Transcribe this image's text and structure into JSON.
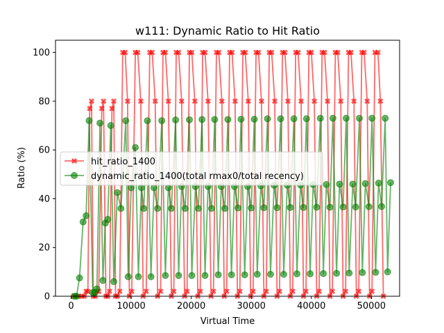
{
  "chart_data": {
    "type": "line",
    "title": "w111: Dynamic Ratio to Hit Ratio",
    "xlabel": "Virtual Time",
    "ylabel": "Ratio (%)",
    "xlim": [
      -2600,
      54700
    ],
    "ylim": [
      0,
      105
    ],
    "x_ticks": [
      0,
      10000,
      20000,
      30000,
      40000,
      50000
    ],
    "y_ticks": [
      0,
      20,
      40,
      60,
      80,
      100
    ],
    "grid": false,
    "legend_position": "center-left",
    "series": [
      {
        "name": "hit_ratio_1400",
        "color": "#ff0000",
        "marker": "X",
        "points": [
          [
            500,
            0
          ],
          [
            800,
            0
          ],
          [
            1200,
            0
          ],
          [
            1800,
            0
          ],
          [
            2200,
            0
          ],
          [
            2500,
            2
          ],
          [
            2800,
            2
          ],
          [
            3100,
            77
          ],
          [
            3400,
            80
          ],
          [
            3700,
            0
          ],
          [
            4000,
            0
          ],
          [
            4300,
            2
          ],
          [
            4600,
            2
          ],
          [
            5100,
            77
          ],
          [
            5400,
            80
          ],
          [
            5800,
            0
          ],
          [
            6100,
            0
          ],
          [
            6400,
            2
          ],
          [
            6800,
            77
          ],
          [
            7100,
            80
          ],
          [
            7400,
            0
          ],
          [
            7700,
            0
          ],
          [
            8100,
            2
          ],
          [
            8600,
            100
          ],
          [
            9000,
            100
          ],
          [
            9400,
            80
          ],
          [
            9700,
            0
          ],
          [
            10100,
            2
          ],
          [
            10700,
            100
          ],
          [
            11100,
            100
          ],
          [
            11600,
            80
          ],
          [
            12000,
            0
          ],
          [
            12500,
            2
          ],
          [
            13100,
            100
          ],
          [
            13500,
            100
          ],
          [
            14000,
            80
          ],
          [
            14400,
            0
          ],
          [
            14900,
            2
          ],
          [
            15300,
            100
          ],
          [
            15700,
            100
          ],
          [
            16200,
            80
          ],
          [
            16700,
            0
          ],
          [
            17100,
            2
          ],
          [
            17500,
            100
          ],
          [
            17900,
            100
          ],
          [
            18400,
            80
          ],
          [
            18900,
            0
          ],
          [
            19300,
            2
          ],
          [
            19700,
            100
          ],
          [
            20100,
            100
          ],
          [
            20600,
            80
          ],
          [
            21100,
            0
          ],
          [
            21500,
            2
          ],
          [
            21900,
            100
          ],
          [
            22300,
            100
          ],
          [
            22800,
            80
          ],
          [
            23300,
            0
          ],
          [
            23700,
            2
          ],
          [
            24200,
            100
          ],
          [
            24600,
            100
          ],
          [
            25100,
            80
          ],
          [
            25500,
            0
          ],
          [
            25900,
            2
          ],
          [
            26400,
            100
          ],
          [
            26800,
            100
          ],
          [
            27300,
            80
          ],
          [
            27700,
            0
          ],
          [
            28100,
            2
          ],
          [
            28600,
            100
          ],
          [
            29000,
            100
          ],
          [
            29500,
            80
          ],
          [
            29900,
            0
          ],
          [
            30300,
            2
          ],
          [
            30800,
            100
          ],
          [
            31200,
            100
          ],
          [
            31700,
            80
          ],
          [
            32100,
            0
          ],
          [
            32500,
            2
          ],
          [
            33000,
            100
          ],
          [
            33400,
            100
          ],
          [
            33900,
            80
          ],
          [
            34300,
            0
          ],
          [
            34700,
            2
          ],
          [
            35200,
            100
          ],
          [
            35600,
            100
          ],
          [
            36100,
            80
          ],
          [
            36500,
            0
          ],
          [
            36900,
            2
          ],
          [
            37400,
            100
          ],
          [
            37800,
            100
          ],
          [
            38300,
            80
          ],
          [
            38700,
            0
          ],
          [
            39100,
            2
          ],
          [
            39600,
            100
          ],
          [
            40000,
            100
          ],
          [
            40500,
            80
          ],
          [
            40900,
            0
          ],
          [
            41300,
            2
          ],
          [
            41800,
            100
          ],
          [
            42200,
            100
          ],
          [
            42700,
            80
          ],
          [
            43100,
            0
          ],
          [
            43500,
            2
          ],
          [
            44000,
            100
          ],
          [
            44400,
            100
          ],
          [
            44900,
            80
          ],
          [
            45300,
            0
          ],
          [
            45700,
            2
          ],
          [
            46200,
            100
          ],
          [
            46600,
            100
          ],
          [
            47100,
            80
          ],
          [
            47500,
            0
          ],
          [
            47900,
            2
          ],
          [
            48400,
            100
          ],
          [
            48800,
            100
          ],
          [
            49300,
            80
          ],
          [
            49700,
            0
          ],
          [
            50100,
            2
          ],
          [
            50600,
            100
          ],
          [
            51100,
            100
          ],
          [
            51500,
            80
          ],
          [
            52000,
            0
          ]
        ]
      },
      {
        "name": "dynamic_ratio_1400(total rmax0/total recency)",
        "color": "#008000",
        "marker": "o",
        "points": [
          [
            500,
            0
          ],
          [
            900,
            0
          ],
          [
            1400,
            7.5
          ],
          [
            2000,
            30.5
          ],
          [
            2500,
            33
          ],
          [
            3000,
            72
          ],
          [
            3600,
            1.5
          ],
          [
            3900,
            1.5
          ],
          [
            4300,
            3
          ],
          [
            4800,
            71
          ],
          [
            5300,
            6.5
          ],
          [
            5700,
            30
          ],
          [
            6100,
            31.5
          ],
          [
            6600,
            70
          ],
          [
            7100,
            6
          ],
          [
            7700,
            42.5
          ],
          [
            8300,
            36
          ],
          [
            9100,
            72
          ],
          [
            9500,
            8
          ],
          [
            10000,
            44.5
          ],
          [
            10700,
            61
          ],
          [
            11200,
            8
          ],
          [
            11700,
            44.5
          ],
          [
            12100,
            36
          ],
          [
            12700,
            72
          ],
          [
            13300,
            8
          ],
          [
            13800,
            44.5
          ],
          [
            14400,
            36
          ],
          [
            15100,
            72
          ],
          [
            15700,
            8.5
          ],
          [
            16200,
            44.5
          ],
          [
            16700,
            36
          ],
          [
            17400,
            72.3
          ],
          [
            17900,
            8.5
          ],
          [
            18400,
            45
          ],
          [
            19000,
            36
          ],
          [
            19700,
            72.4
          ],
          [
            20100,
            8.5
          ],
          [
            20700,
            45
          ],
          [
            21200,
            36
          ],
          [
            21800,
            72.5
          ],
          [
            22300,
            8.5
          ],
          [
            22800,
            45
          ],
          [
            23400,
            36
          ],
          [
            23900,
            72.5
          ],
          [
            24500,
            8.8
          ],
          [
            25000,
            45
          ],
          [
            25600,
            36
          ],
          [
            26100,
            72.5
          ],
          [
            26700,
            8.8
          ],
          [
            27200,
            45
          ],
          [
            27800,
            36.2
          ],
          [
            28300,
            72.6
          ],
          [
            28900,
            8.8
          ],
          [
            29400,
            45
          ],
          [
            30000,
            36.2
          ],
          [
            30500,
            72.6
          ],
          [
            31000,
            9
          ],
          [
            31600,
            45.3
          ],
          [
            32100,
            36.3
          ],
          [
            32700,
            72.8
          ],
          [
            33200,
            9
          ],
          [
            33800,
            45.5
          ],
          [
            34300,
            36.3
          ],
          [
            34900,
            72.8
          ],
          [
            35400,
            9
          ],
          [
            36000,
            45.5
          ],
          [
            36500,
            36.4
          ],
          [
            37100,
            72.8
          ],
          [
            37600,
            9.2
          ],
          [
            38200,
            45.6
          ],
          [
            38700,
            36.4
          ],
          [
            39200,
            72.8
          ],
          [
            39800,
            9.2
          ],
          [
            40300,
            45.8
          ],
          [
            40900,
            36.5
          ],
          [
            41500,
            73
          ],
          [
            42000,
            9.3
          ],
          [
            42500,
            45.8
          ],
          [
            43100,
            36.5
          ],
          [
            43600,
            73
          ],
          [
            44200,
            9.4
          ],
          [
            44700,
            46
          ],
          [
            45300,
            36.6
          ],
          [
            45800,
            73
          ],
          [
            46300,
            9.5
          ],
          [
            46900,
            46
          ],
          [
            47400,
            36.6
          ],
          [
            48000,
            73
          ],
          [
            48500,
            9.7
          ],
          [
            49000,
            46.2
          ],
          [
            49600,
            36.7
          ],
          [
            50100,
            73
          ],
          [
            50700,
            9.8
          ],
          [
            51200,
            46.4
          ],
          [
            51700,
            36.8
          ],
          [
            52300,
            73
          ],
          [
            52700,
            10
          ],
          [
            53200,
            46.6
          ]
        ]
      }
    ]
  }
}
